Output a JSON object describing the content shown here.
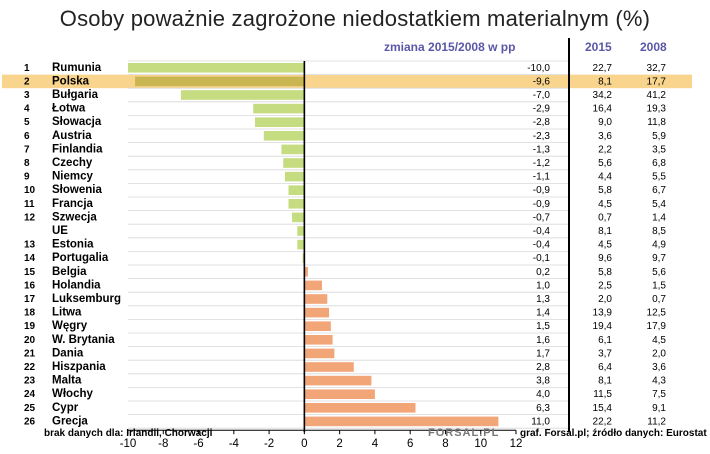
{
  "chart_data": {
    "type": "bar",
    "title": "Osoby poważnie zagrożone niedostatkiem  materialnym (%)",
    "subtitle": "zmiana 2015/2008 w pp",
    "column_headers": [
      "2015",
      "2008"
    ],
    "xlim": [
      -10,
      12
    ],
    "xticks": [
      "-10",
      "-8",
      "-6",
      "-4",
      "-2",
      "0",
      "2",
      "4",
      "6",
      "8",
      "10",
      "12"
    ],
    "highlight_category": "Polska",
    "rows": [
      {
        "rank": "1",
        "name": "Rumunia",
        "change": -10.0,
        "change_label": "-10,0",
        "v2015": "22,7",
        "v2008": "32,7"
      },
      {
        "rank": "2",
        "name": "Polska",
        "change": -9.6,
        "change_label": "-9,6",
        "v2015": "8,1",
        "v2008": "17,7"
      },
      {
        "rank": "3",
        "name": "Bułgaria",
        "change": -7.0,
        "change_label": "-7,0",
        "v2015": "34,2",
        "v2008": "41,2"
      },
      {
        "rank": "4",
        "name": "Łotwa",
        "change": -2.9,
        "change_label": "-2,9",
        "v2015": "16,4",
        "v2008": "19,3"
      },
      {
        "rank": "5",
        "name": "Słowacja",
        "change": -2.8,
        "change_label": "-2,8",
        "v2015": "9,0",
        "v2008": "11,8"
      },
      {
        "rank": "6",
        "name": "Austria",
        "change": -2.3,
        "change_label": "-2,3",
        "v2015": "3,6",
        "v2008": "5,9"
      },
      {
        "rank": "7",
        "name": "Finlandia",
        "change": -1.3,
        "change_label": "-1,3",
        "v2015": "2,2",
        "v2008": "3,5"
      },
      {
        "rank": "8",
        "name": "Czechy",
        "change": -1.2,
        "change_label": "-1,2",
        "v2015": "5,6",
        "v2008": "6,8"
      },
      {
        "rank": "9",
        "name": "Niemcy",
        "change": -1.1,
        "change_label": "-1,1",
        "v2015": "4,4",
        "v2008": "5,5"
      },
      {
        "rank": "10",
        "name": "Słowenia",
        "change": -0.9,
        "change_label": "-0,9",
        "v2015": "5,8",
        "v2008": "6,7"
      },
      {
        "rank": "11",
        "name": "Francja",
        "change": -0.9,
        "change_label": "-0,9",
        "v2015": "4,5",
        "v2008": "5,4"
      },
      {
        "rank": "12",
        "name": "Szwecja",
        "change": -0.7,
        "change_label": "-0,7",
        "v2015": "0,7",
        "v2008": "1,4"
      },
      {
        "rank": "",
        "name": "UE",
        "change": -0.4,
        "change_label": "-0,4",
        "v2015": "8,1",
        "v2008": "8,5"
      },
      {
        "rank": "13",
        "name": "Estonia",
        "change": -0.4,
        "change_label": "-0,4",
        "v2015": "4,5",
        "v2008": "4,9"
      },
      {
        "rank": "14",
        "name": "Portugalia",
        "change": -0.1,
        "change_label": "-0,1",
        "v2015": "9,6",
        "v2008": "9,7"
      },
      {
        "rank": "15",
        "name": "Belgia",
        "change": 0.2,
        "change_label": "0,2",
        "v2015": "5,8",
        "v2008": "5,6"
      },
      {
        "rank": "16",
        "name": "Holandia",
        "change": 1.0,
        "change_label": "1,0",
        "v2015": "2,5",
        "v2008": "1,5"
      },
      {
        "rank": "17",
        "name": "Luksemburg",
        "change": 1.3,
        "change_label": "1,3",
        "v2015": "2,0",
        "v2008": "0,7"
      },
      {
        "rank": "18",
        "name": "Litwa",
        "change": 1.4,
        "change_label": "1,4",
        "v2015": "13,9",
        "v2008": "12,5"
      },
      {
        "rank": "19",
        "name": "Węgry",
        "change": 1.5,
        "change_label": "1,5",
        "v2015": "19,4",
        "v2008": "17,9"
      },
      {
        "rank": "20",
        "name": "W. Brytania",
        "change": 1.6,
        "change_label": "1,6",
        "v2015": "6,1",
        "v2008": "4,5"
      },
      {
        "rank": "21",
        "name": "Dania",
        "change": 1.7,
        "change_label": "1,7",
        "v2015": "3,7",
        "v2008": "2,0"
      },
      {
        "rank": "22",
        "name": "Hiszpania",
        "change": 2.8,
        "change_label": "2,8",
        "v2015": "6,4",
        "v2008": "3,6"
      },
      {
        "rank": "23",
        "name": "Malta",
        "change": 3.8,
        "change_label": "3,8",
        "v2015": "8,1",
        "v2008": "4,3"
      },
      {
        "rank": "24",
        "name": "Włochy",
        "change": 4.0,
        "change_label": "4,0",
        "v2015": "11,5",
        "v2008": "7,5"
      },
      {
        "rank": "25",
        "name": "Cypr",
        "change": 6.3,
        "change_label": "6,3",
        "v2015": "15,4",
        "v2008": "9,1"
      },
      {
        "rank": "26",
        "name": "Grecja",
        "change": 11.0,
        "change_label": "11,0",
        "v2015": "22,2",
        "v2008": "11,2"
      }
    ],
    "colors": {
      "negative_bar": "#c5dc80",
      "highlight_bar": "#c9b650",
      "highlight_row": "#f8d48c",
      "positive_bar": "#f2a577",
      "header_text": "#5a57a8"
    }
  },
  "footer": {
    "note": "brak danych dla: Irlandii, Chorwacji",
    "logo": "FORSAL.PL",
    "source": "graf. Forsal.pl; źródło danych: Eurostat"
  }
}
